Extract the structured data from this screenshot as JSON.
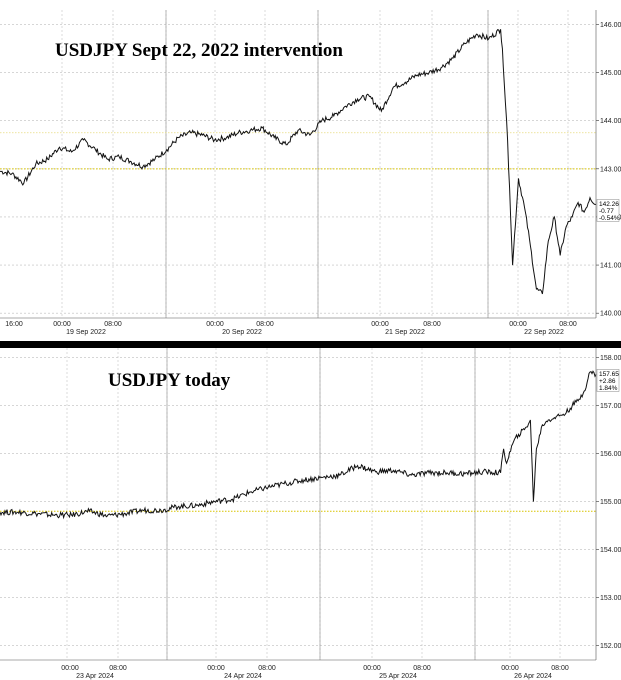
{
  "chart_data": [
    {
      "type": "line",
      "title": "USDJPY Sept 22, 2022 intervention",
      "ylim": [
        139.9,
        146.3
      ],
      "y_ticks": [
        "146.00",
        "145.00",
        "144.00",
        "143.00",
        "142.00",
        "141.00",
        "140.00"
      ],
      "y_tick_values": [
        146,
        145,
        144,
        143,
        142,
        141,
        140
      ],
      "x_time_labels": [
        "16:00",
        "00:00",
        "08:00",
        "00:00",
        "08:00",
        "00:00",
        "08:00",
        "00:00",
        "08:00"
      ],
      "x_date_labels": [
        "19 Sep 2022",
        "20 Sep 2022",
        "21 Sep 2022",
        "22 Sep 2022"
      ],
      "reference_levels": [
        143.0,
        143.75
      ],
      "last_value": {
        "price": "142.26",
        "change": "-0.77",
        "pct": "-0.54%"
      },
      "series": [
        {
          "x": [
            0,
            2,
            4,
            6,
            8,
            10,
            12,
            14,
            16,
            18,
            20,
            22,
            24,
            26,
            28,
            30,
            32,
            34,
            36,
            38,
            40,
            42,
            44,
            46,
            48,
            50,
            52,
            54,
            56,
            58,
            60,
            62,
            64,
            66,
            68,
            70,
            72,
            74,
            76,
            78,
            80,
            82,
            84,
            84.3,
            84.6,
            85,
            85.5,
            86,
            87,
            88,
            89,
            90,
            91,
            92,
            93,
            94,
            95,
            96,
            97,
            98,
            99,
            100
          ],
          "y": [
            142.95,
            142.9,
            142.7,
            143.1,
            143.2,
            143.45,
            143.35,
            143.6,
            143.4,
            143.2,
            143.25,
            143.15,
            143.05,
            143.2,
            143.4,
            143.65,
            143.75,
            143.7,
            143.6,
            143.65,
            143.75,
            143.8,
            143.85,
            143.65,
            143.5,
            143.8,
            143.7,
            144.0,
            144.1,
            144.3,
            144.45,
            144.5,
            144.2,
            144.7,
            144.8,
            144.95,
            145.0,
            145.1,
            145.3,
            145.6,
            145.8,
            145.7,
            145.9,
            145.5,
            144.8,
            144.0,
            142.6,
            141.0,
            142.8,
            142.2,
            141.4,
            140.5,
            140.4,
            141.5,
            142.0,
            141.2,
            141.8,
            142.0,
            142.3,
            142.1,
            142.4,
            142.26
          ]
        }
      ]
    },
    {
      "type": "line",
      "title": "USDJPY today",
      "ylim": [
        151.7,
        158.2
      ],
      "y_ticks": [
        "158.00",
        "157.00",
        "156.00",
        "155.00",
        "154.00",
        "153.00",
        "152.00"
      ],
      "y_tick_values": [
        158,
        157,
        156,
        155,
        154,
        153,
        152
      ],
      "x_time_labels": [
        "00:00",
        "08:00",
        "00:00",
        "08:00",
        "00:00",
        "08:00",
        "00:00",
        "08:00"
      ],
      "x_date_labels": [
        "23 Apr 2024",
        "24 Apr 2024",
        "25 Apr 2024",
        "26 Apr 2024"
      ],
      "reference_levels": [
        154.8
      ],
      "last_value": {
        "price": "157.65",
        "change": "+2.86",
        "pct": "1.84%"
      },
      "series": [
        {
          "x": [
            0,
            3,
            6,
            9,
            12,
            15,
            18,
            21,
            24,
            27,
            30,
            33,
            36,
            39,
            42,
            45,
            48,
            51,
            54,
            57,
            60,
            63,
            66,
            69,
            72,
            75,
            78,
            81,
            84,
            84.5,
            85,
            86,
            87,
            88,
            89,
            89.5,
            90,
            91,
            92,
            93,
            94,
            95,
            96,
            97,
            98,
            99,
            100
          ],
          "y": [
            154.78,
            154.78,
            154.75,
            154.72,
            154.72,
            154.8,
            154.7,
            154.75,
            154.82,
            154.82,
            154.9,
            154.92,
            155.0,
            155.05,
            155.2,
            155.3,
            155.38,
            155.45,
            155.5,
            155.55,
            155.75,
            155.62,
            155.65,
            155.55,
            155.6,
            155.6,
            155.58,
            155.62,
            155.6,
            156.1,
            155.8,
            156.2,
            156.4,
            156.5,
            156.7,
            155.0,
            156.1,
            156.6,
            156.7,
            156.75,
            156.8,
            156.85,
            157.0,
            157.1,
            157.3,
            157.7,
            157.65
          ]
        }
      ]
    }
  ]
}
